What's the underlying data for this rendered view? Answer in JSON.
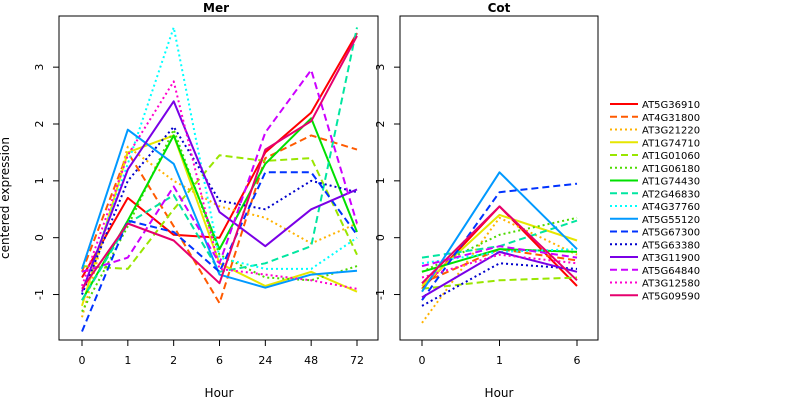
{
  "chart_data": [
    {
      "type": "line",
      "title": "Mer",
      "xlabel": "Hour",
      "ylabel": "centered expression",
      "categories": [
        "0",
        "1",
        "2",
        "6",
        "24",
        "48",
        "72"
      ],
      "ylim": [
        -1.8,
        3.9
      ],
      "yticks": [
        -1,
        0,
        1,
        2,
        3
      ],
      "series": [
        {
          "name": "AT5G36910",
          "color": "#ff0000",
          "dash": "solid",
          "values": [
            -0.7,
            0.7,
            0.05,
            0.0,
            1.5,
            2.2,
            3.6
          ]
        },
        {
          "name": "AT4G31800",
          "color": "#ff5a00",
          "dash": "dashed",
          "values": [
            -0.6,
            1.5,
            0.2,
            -1.15,
            1.4,
            1.8,
            1.55
          ]
        },
        {
          "name": "AT3G21220",
          "color": "#ffb300",
          "dash": "dotted",
          "values": [
            -1.4,
            1.6,
            1.0,
            0.55,
            0.35,
            -0.1,
            0.25
          ]
        },
        {
          "name": "AT1G74710",
          "color": "#e6e600",
          "dash": "solid",
          "values": [
            -1.2,
            1.5,
            1.8,
            -0.45,
            -0.85,
            -0.6,
            -0.95
          ]
        },
        {
          "name": "AT1G01060",
          "color": "#99e600",
          "dash": "dashed",
          "values": [
            -0.5,
            -0.55,
            0.5,
            1.45,
            1.35,
            1.4,
            -0.3
          ]
        },
        {
          "name": "AT1G06180",
          "color": "#4dd900",
          "dash": "dotted",
          "values": [
            -1.3,
            0.2,
            1.9,
            -0.3,
            -0.7,
            -0.75,
            -0.5
          ]
        },
        {
          "name": "AT1G74430",
          "color": "#00e000",
          "dash": "solid",
          "values": [
            -1.1,
            0.3,
            1.8,
            -0.2,
            1.3,
            2.1,
            0.1
          ]
        },
        {
          "name": "AT2G46830",
          "color": "#00e6a0",
          "dash": "dashed",
          "values": [
            -1.1,
            0.25,
            0.75,
            -0.6,
            -0.45,
            -0.15,
            3.7
          ]
        },
        {
          "name": "AT4G37760",
          "color": "#00ffff",
          "dash": "dotted",
          "values": [
            -1.0,
            1.3,
            3.7,
            -0.35,
            -0.55,
            -0.55,
            0.0
          ]
        },
        {
          "name": "AT5G55120",
          "color": "#0099ff",
          "dash": "solid",
          "values": [
            -0.55,
            1.9,
            1.3,
            -0.65,
            -0.88,
            -0.65,
            -0.58
          ]
        },
        {
          "name": "AT5G67300",
          "color": "#0033ff",
          "dash": "dashed",
          "values": [
            -1.65,
            0.3,
            0.1,
            -0.6,
            1.15,
            1.15,
            0.05
          ]
        },
        {
          "name": "AT5G63380",
          "color": "#0000cc",
          "dash": "dotted",
          "values": [
            -1.0,
            1.0,
            1.95,
            0.65,
            0.5,
            1.0,
            0.8
          ]
        },
        {
          "name": "AT3G11900",
          "color": "#7a00e6",
          "dash": "solid",
          "values": [
            -0.95,
            1.2,
            2.4,
            0.45,
            -0.15,
            0.5,
            0.85
          ]
        },
        {
          "name": "AT5G64840",
          "color": "#cc00ff",
          "dash": "dashed",
          "values": [
            -0.6,
            -0.35,
            0.9,
            -0.45,
            1.85,
            2.95,
            0.25
          ]
        },
        {
          "name": "AT3G12580",
          "color": "#ff00cc",
          "dash": "dotted",
          "values": [
            -0.85,
            1.45,
            2.75,
            -0.55,
            -0.65,
            -0.75,
            -0.9
          ]
        },
        {
          "name": "AT5G09590",
          "color": "#e6006e",
          "dash": "solid",
          "values": [
            -0.9,
            0.25,
            -0.05,
            -0.8,
            1.55,
            2.05,
            3.55
          ]
        }
      ]
    },
    {
      "type": "line",
      "title": "Cot",
      "xlabel": "Hour",
      "categories": [
        "0",
        "1",
        "6"
      ],
      "ylim": [
        -1.8,
        3.9
      ],
      "yticks": [
        -1,
        0,
        1,
        2,
        3
      ],
      "series": [
        {
          "name": "AT5G36910",
          "color": "#ff0000",
          "dash": "solid",
          "values": [
            -0.9,
            0.55,
            -0.85
          ]
        },
        {
          "name": "AT4G31800",
          "color": "#ff5a00",
          "dash": "dashed",
          "values": [
            -0.8,
            -0.2,
            -0.4
          ]
        },
        {
          "name": "AT3G21220",
          "color": "#ffb300",
          "dash": "dotted",
          "values": [
            -1.5,
            0.35,
            -0.3
          ]
        },
        {
          "name": "AT1G74710",
          "color": "#e6e600",
          "dash": "solid",
          "values": [
            -0.85,
            0.4,
            -0.05
          ]
        },
        {
          "name": "AT1G01060",
          "color": "#99e600",
          "dash": "dashed",
          "values": [
            -0.9,
            -0.75,
            -0.7
          ]
        },
        {
          "name": "AT1G06180",
          "color": "#4dd900",
          "dash": "dotted",
          "values": [
            -0.6,
            0.05,
            0.35
          ]
        },
        {
          "name": "AT1G74430",
          "color": "#00e000",
          "dash": "solid",
          "values": [
            -0.6,
            -0.2,
            -0.25
          ]
        },
        {
          "name": "AT2G46830",
          "color": "#00e6a0",
          "dash": "dashed",
          "values": [
            -0.35,
            -0.15,
            0.3
          ]
        },
        {
          "name": "AT4G37760",
          "color": "#00ffff",
          "dash": "dotted",
          "values": [
            -0.45,
            -0.25,
            -0.2
          ]
        },
        {
          "name": "AT5G55120",
          "color": "#0099ff",
          "dash": "solid",
          "values": [
            -0.95,
            1.15,
            -0.2
          ]
        },
        {
          "name": "AT5G67300",
          "color": "#0033ff",
          "dash": "dashed",
          "values": [
            -1.1,
            0.8,
            0.95
          ]
        },
        {
          "name": "AT5G63380",
          "color": "#0000cc",
          "dash": "dotted",
          "values": [
            -1.2,
            -0.45,
            -0.55
          ]
        },
        {
          "name": "AT3G11900",
          "color": "#7a00e6",
          "dash": "solid",
          "values": [
            -1.05,
            -0.25,
            -0.6
          ]
        },
        {
          "name": "AT5G64840",
          "color": "#cc00ff",
          "dash": "dashed",
          "values": [
            -0.5,
            -0.15,
            -0.35
          ]
        },
        {
          "name": "AT3G12580",
          "color": "#ff00cc",
          "dash": "dotted",
          "values": [
            -0.7,
            -0.3,
            -0.45
          ]
        },
        {
          "name": "AT5G09590",
          "color": "#e6006e",
          "dash": "solid",
          "values": [
            -0.8,
            0.55,
            -0.75
          ]
        }
      ]
    }
  ]
}
